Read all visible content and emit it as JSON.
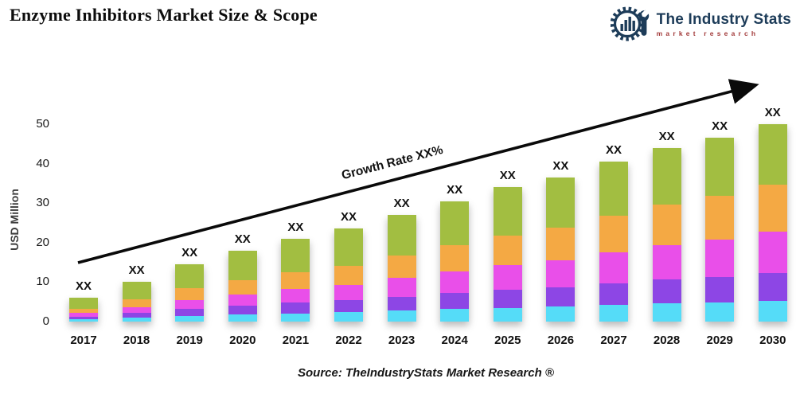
{
  "header": {
    "title": "Enzyme Inhibitors Market Size & Scope",
    "logo": {
      "name": "The Industry Stats",
      "tagline": "market research",
      "brand_navy": "#1d3c59",
      "brand_red": "#a23a3a"
    }
  },
  "chart_data": {
    "type": "bar",
    "stacked": true,
    "title": "Enzyme Inhibitors Market Size & Scope",
    "xlabel": "",
    "ylabel": "USD Million",
    "ylim": [
      0,
      50
    ],
    "yticks": [
      0,
      10,
      20,
      30,
      40,
      50
    ],
    "grid": false,
    "legend": "none",
    "categories": [
      "2017",
      "2018",
      "2019",
      "2020",
      "2021",
      "2022",
      "2023",
      "2024",
      "2025",
      "2026",
      "2027",
      "2028",
      "2029",
      "2030"
    ],
    "series": [
      {
        "name": "segment-cyan",
        "color": "#55dcf8",
        "values": [
          0.6,
          1.0,
          1.5,
          1.8,
          2.1,
          2.4,
          2.8,
          3.2,
          3.5,
          3.8,
          4.2,
          4.6,
          4.9,
          5.2
        ]
      },
      {
        "name": "segment-purple",
        "color": "#8d46e5",
        "values": [
          0.7,
          1.2,
          1.8,
          2.2,
          2.7,
          3.0,
          3.5,
          4.1,
          4.6,
          4.9,
          5.5,
          6.0,
          6.4,
          7.0
        ]
      },
      {
        "name": "segment-magenta",
        "color": "#e94fe9",
        "values": [
          0.9,
          1.5,
          2.2,
          2.8,
          3.4,
          3.9,
          4.7,
          5.4,
          6.2,
          6.9,
          7.8,
          8.8,
          9.5,
          10.5
        ]
      },
      {
        "name": "segment-orange",
        "color": "#f4a944",
        "values": [
          1.1,
          1.9,
          2.9,
          3.6,
          4.3,
          4.9,
          5.7,
          6.6,
          7.4,
          8.2,
          9.3,
          10.2,
          11.0,
          12.0
        ]
      },
      {
        "name": "segment-green",
        "color": "#a2be41",
        "values": [
          2.7,
          4.4,
          6.1,
          7.6,
          8.5,
          9.3,
          10.3,
          11.2,
          12.3,
          12.7,
          13.7,
          14.4,
          14.7,
          15.3
        ]
      }
    ],
    "totals": [
      6.0,
      10.0,
      14.5,
      18.0,
      21.0,
      23.5,
      27.0,
      30.5,
      34.0,
      36.5,
      40.5,
      44.0,
      46.5,
      50.0
    ],
    "bar_value_label": "XX",
    "annotation": "Growth Rate XX%"
  },
  "footer": {
    "source": "Source: TheIndustryStats Market Research ®"
  }
}
